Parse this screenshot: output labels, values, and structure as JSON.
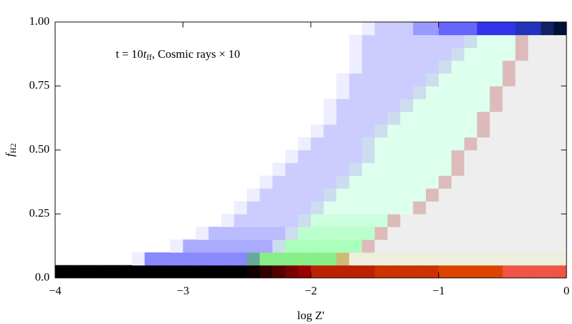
{
  "chart_data": {
    "type": "heatmap",
    "annotation": [
      "t = 10",
      "t",
      "ff",
      ", Cosmic rays × 10"
    ],
    "xlabel": "log Z'",
    "ylabel": "f",
    "ylabel_sub": "H2",
    "xlim": [
      -4,
      0
    ],
    "xticks": [
      {
        "value": -4,
        "label": "−4"
      },
      {
        "value": -3,
        "label": "−3"
      },
      {
        "value": -2,
        "label": "−2"
      },
      {
        "value": -1,
        "label": "−1"
      },
      0
    ],
    "ylim": [
      0,
      1
    ],
    "yticks": [
      {
        "value": 0,
        "label": "0.0"
      },
      0.25,
      {
        "value": 0.5,
        "label": "0.50"
      },
      0.75,
      {
        "value": 1,
        "label": "1.00"
      }
    ],
    "colors": [
      [
        "#000",
        "#000",
        "#000",
        "#000",
        "#000",
        "#000",
        "#000",
        "#000",
        "#000",
        "#000",
        "#000",
        "#000",
        "#000",
        "#000",
        "#000",
        "#100",
        "#300",
        "#500",
        "#700",
        "#900",
        "#b20",
        "#b20",
        "#b20",
        "#b20",
        "#b20",
        "#c30",
        "#c30",
        "#c30",
        "#c30",
        "#c30",
        "#d40",
        "#d40",
        "#d40",
        "#d40",
        "#d40",
        "#e54",
        "#e54",
        "#e54",
        "#e54",
        "#e54"
      ],
      [
        null,
        null,
        null,
        null,
        null,
        null,
        "#eef",
        "#88f",
        "#88f",
        "#88f",
        "#88f",
        "#88f",
        "#88f",
        "#88f",
        "#88f",
        "#6a9",
        "#8e8",
        "#8e8",
        "#8e8",
        "#8e8",
        "#8e8",
        "#8e8",
        "#cb7",
        "#eed",
        "#eed",
        "#eed",
        "#eed",
        "#eed",
        "#eed",
        "#eed",
        "#eed",
        "#eed",
        "#eed",
        "#eed",
        "#eed",
        "#eed",
        "#eed",
        "#eed",
        "#eed",
        "#eed"
      ],
      [
        null,
        null,
        null,
        null,
        null,
        null,
        null,
        null,
        null,
        "#eef",
        "#aaf",
        "#aaf",
        "#aaf",
        "#aaf",
        "#aaf",
        "#aaf",
        "#aaf",
        "#cde",
        "#afb",
        "#afb",
        "#afb",
        "#afb",
        "#afb",
        "#afb",
        "#dbb",
        "#eee",
        "#eee",
        "#eee",
        "#eee",
        "#eee",
        "#eee",
        "#eee",
        "#eee",
        "#eee",
        "#eee",
        "#eee",
        "#eee",
        "#eee",
        "#eee",
        "#eee"
      ],
      [
        null,
        null,
        null,
        null,
        null,
        null,
        null,
        null,
        null,
        null,
        null,
        "#eef",
        "#bbf",
        "#bbf",
        "#bbf",
        "#bbf",
        "#bbf",
        "#bbf",
        "#cde",
        "#bfc",
        "#bfc",
        "#bfc",
        "#bfc",
        "#bfc",
        "#bfc",
        "#dbb",
        "#eee",
        "#eee",
        "#eee",
        "#eee",
        "#eee",
        "#eee",
        "#eee",
        "#eee",
        "#eee",
        "#eee",
        "#eee",
        "#eee",
        "#eee",
        "#eee"
      ],
      [
        null,
        null,
        null,
        null,
        null,
        null,
        null,
        null,
        null,
        null,
        null,
        null,
        null,
        "#eef",
        "#ccf",
        "#ccf",
        "#ccf",
        "#ccf",
        "#ccf",
        "#cde",
        "#cfd",
        "#cfd",
        "#cfd",
        "#cfd",
        "#cfd",
        "#cfd",
        "#dbb",
        "#eee",
        "#eee",
        "#eee",
        "#eee",
        "#eee",
        "#eee",
        "#eee",
        "#eee",
        "#eee",
        "#eee",
        "#eee",
        "#eee",
        "#eee"
      ],
      [
        null,
        null,
        null,
        null,
        null,
        null,
        null,
        null,
        null,
        null,
        null,
        null,
        null,
        null,
        "#eef",
        "#ccf",
        "#ccf",
        "#ccf",
        "#ccf",
        "#ccf",
        "#cde",
        "#dfe",
        "#dfe",
        "#dfe",
        "#dfe",
        "#dfe",
        "#dfe",
        "#dfe",
        "#dbb",
        "#eee",
        "#eee",
        "#eee",
        "#eee",
        "#eee",
        "#eee",
        "#eee",
        "#eee",
        "#eee",
        "#eee",
        "#eee"
      ],
      [
        null,
        null,
        null,
        null,
        null,
        null,
        null,
        null,
        null,
        null,
        null,
        null,
        null,
        null,
        null,
        "#eef",
        "#ccf",
        "#ccf",
        "#ccf",
        "#ccf",
        "#ccf",
        "#cde",
        "#dfe",
        "#dfe",
        "#dfe",
        "#dfe",
        "#dfe",
        "#dfe",
        "#dfe",
        "#dbb",
        "#eee",
        "#eee",
        "#eee",
        "#eee",
        "#eee",
        "#eee",
        "#eee",
        "#eee",
        "#eee",
        "#eee"
      ],
      [
        null,
        null,
        null,
        null,
        null,
        null,
        null,
        null,
        null,
        null,
        null,
        null,
        null,
        null,
        null,
        null,
        "#eef",
        "#ccf",
        "#ccf",
        "#ccf",
        "#ccf",
        "#ccf",
        "#cde",
        "#dfe",
        "#dfe",
        "#dfe",
        "#dfe",
        "#dfe",
        "#dfe",
        "#dfe",
        "#dbb",
        "#eee",
        "#eee",
        "#eee",
        "#eee",
        "#eee",
        "#eee",
        "#eee",
        "#eee",
        "#eee"
      ],
      [
        null,
        null,
        null,
        null,
        null,
        null,
        null,
        null,
        null,
        null,
        null,
        null,
        null,
        null,
        null,
        null,
        null,
        "#eef",
        "#ccf",
        "#ccf",
        "#ccf",
        "#ccf",
        "#ccf",
        "#cde",
        "#dfe",
        "#dfe",
        "#dfe",
        "#dfe",
        "#dfe",
        "#dfe",
        "#dfe",
        "#dbb",
        "#eee",
        "#eee",
        "#eee",
        "#eee",
        "#eee",
        "#eee",
        "#eee",
        "#eee"
      ],
      [
        null,
        null,
        null,
        null,
        null,
        null,
        null,
        null,
        null,
        null,
        null,
        null,
        null,
        null,
        null,
        null,
        null,
        null,
        "#eef",
        "#ccf",
        "#ccf",
        "#ccf",
        "#ccf",
        "#ccf",
        "#cde",
        "#dfe",
        "#dfe",
        "#dfe",
        "#dfe",
        "#dfe",
        "#dfe",
        "#dbb",
        "#eee",
        "#eee",
        "#eee",
        "#eee",
        "#eee",
        "#eee",
        "#eee",
        "#eee"
      ],
      [
        null,
        null,
        null,
        null,
        null,
        null,
        null,
        null,
        null,
        null,
        null,
        null,
        null,
        null,
        null,
        null,
        null,
        null,
        null,
        "#eef",
        "#ccf",
        "#ccf",
        "#ccf",
        "#ccf",
        "#cde",
        "#dfe",
        "#dfe",
        "#dfe",
        "#dfe",
        "#dfe",
        "#dfe",
        "#dfe",
        "#dbb",
        "#eee",
        "#eee",
        "#eee",
        "#eee",
        "#eee",
        "#eee",
        "#eee"
      ],
      [
        null,
        null,
        null,
        null,
        null,
        null,
        null,
        null,
        null,
        null,
        null,
        null,
        null,
        null,
        null,
        null,
        null,
        null,
        null,
        null,
        "#eef",
        "#ccf",
        "#ccf",
        "#ccf",
        "#ccf",
        "#cde",
        "#dfe",
        "#dfe",
        "#dfe",
        "#dfe",
        "#dfe",
        "#dfe",
        "#dfe",
        "#dbb",
        "#eee",
        "#eee",
        "#eee",
        "#eee",
        "#eee",
        "#eee"
      ],
      [
        null,
        null,
        null,
        null,
        null,
        null,
        null,
        null,
        null,
        null,
        null,
        null,
        null,
        null,
        null,
        null,
        null,
        null,
        null,
        null,
        null,
        "#eef",
        "#ccf",
        "#ccf",
        "#ccf",
        "#ccf",
        "#cde",
        "#dfe",
        "#dfe",
        "#dfe",
        "#dfe",
        "#dfe",
        "#dfe",
        "#dbb",
        "#eee",
        "#eee",
        "#eee",
        "#eee",
        "#eee",
        "#eee"
      ],
      [
        null,
        null,
        null,
        null,
        null,
        null,
        null,
        null,
        null,
        null,
        null,
        null,
        null,
        null,
        null,
        null,
        null,
        null,
        null,
        null,
        null,
        "#eef",
        "#ccf",
        "#ccf",
        "#ccf",
        "#ccf",
        "#ccf",
        "#cde",
        "#dfe",
        "#dfe",
        "#dfe",
        "#dfe",
        "#dfe",
        "#dfe",
        "#dbb",
        "#eee",
        "#eee",
        "#eee",
        "#eee",
        "#eee"
      ],
      [
        null,
        null,
        null,
        null,
        null,
        null,
        null,
        null,
        null,
        null,
        null,
        null,
        null,
        null,
        null,
        null,
        null,
        null,
        null,
        null,
        null,
        null,
        "#eef",
        "#ccf",
        "#ccf",
        "#ccf",
        "#ccf",
        "#ccf",
        "#cde",
        "#dfe",
        "#dfe",
        "#dfe",
        "#dfe",
        "#dfe",
        "#dbb",
        "#eee",
        "#eee",
        "#eee",
        "#eee",
        "#eee"
      ],
      [
        null,
        null,
        null,
        null,
        null,
        null,
        null,
        null,
        null,
        null,
        null,
        null,
        null,
        null,
        null,
        null,
        null,
        null,
        null,
        null,
        null,
        null,
        "#eef",
        "#ccf",
        "#ccf",
        "#ccf",
        "#ccf",
        "#ccf",
        "#ccf",
        "#cde",
        "#dfe",
        "#dfe",
        "#dfe",
        "#dfe",
        "#dfe",
        "#dbb",
        "#eee",
        "#eee",
        "#eee",
        "#eee"
      ],
      [
        null,
        null,
        null,
        null,
        null,
        null,
        null,
        null,
        null,
        null,
        null,
        null,
        null,
        null,
        null,
        null,
        null,
        null,
        null,
        null,
        null,
        null,
        null,
        "#eef",
        "#ccf",
        "#ccf",
        "#ccf",
        "#ccf",
        "#ccf",
        "#ccf",
        "#cde",
        "#dfe",
        "#dfe",
        "#dfe",
        "#dfe",
        "#dbb",
        "#eee",
        "#eee",
        "#eee",
        "#eee"
      ],
      [
        null,
        null,
        null,
        null,
        null,
        null,
        null,
        null,
        null,
        null,
        null,
        null,
        null,
        null,
        null,
        null,
        null,
        null,
        null,
        null,
        null,
        null,
        null,
        "#eef",
        "#ccf",
        "#ccf",
        "#ccf",
        "#ccf",
        "#ccf",
        "#ccf",
        "#ccf",
        "#cde",
        "#dfe",
        "#dfe",
        "#dfe",
        "#dfe",
        "#dbb",
        "#eee",
        "#eee",
        "#eee"
      ],
      [
        null,
        null,
        null,
        null,
        null,
        null,
        null,
        null,
        null,
        null,
        null,
        null,
        null,
        null,
        null,
        null,
        null,
        null,
        null,
        null,
        null,
        null,
        null,
        "#eef",
        "#ccf",
        "#ccf",
        "#ccf",
        "#ccf",
        "#ccf",
        "#ccf",
        "#ccf",
        "#ccf",
        "#cde",
        "#dfe",
        "#dfe",
        "#dfe",
        "#dbb",
        "#eee",
        "#eee",
        "#eee"
      ],
      [
        null,
        null,
        null,
        null,
        null,
        null,
        null,
        null,
        null,
        null,
        null,
        null,
        null,
        null,
        null,
        null,
        null,
        null,
        null,
        null,
        null,
        null,
        null,
        null,
        "#eef",
        "#ccf",
        "#ccf",
        "#ccf",
        "#99f",
        "#99f",
        "#66f",
        "#66f",
        "#66f",
        "#33e",
        "#33e",
        "#33e",
        "#23b",
        "#23b",
        "#126",
        "#013"
      ]
    ]
  }
}
